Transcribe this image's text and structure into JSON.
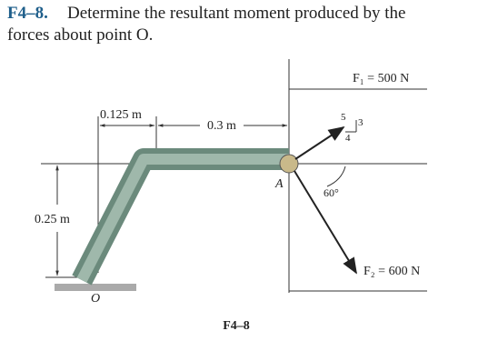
{
  "header": {
    "label": "F4–8.",
    "text": "Determine the resultant moment produced by the",
    "text_line2": "forces about point O."
  },
  "figure": {
    "dim_1": "0.125 m",
    "dim_2": "0.3 m",
    "dim_3": "0.25 m",
    "force_1": "F₁ = 500 N",
    "slope_5": "5",
    "slope_3": "3",
    "slope_4": "4",
    "point_a": "A",
    "angle": "60°",
    "force_2": "F₂ = 600 N",
    "point_o": "O",
    "caption": "F4–8"
  }
}
